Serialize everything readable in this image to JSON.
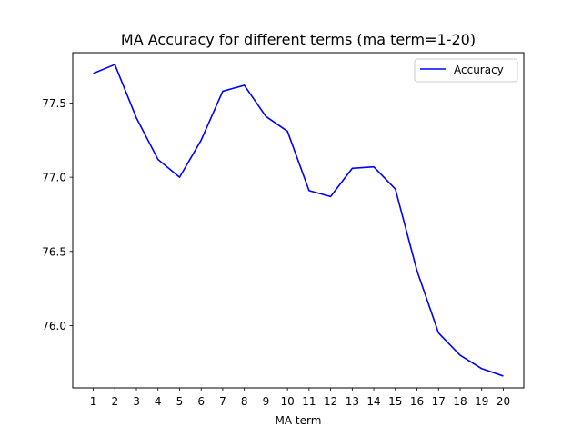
{
  "chart_data": {
    "type": "line",
    "title": "MA Accuracy for different terms (ma term=1-20)",
    "xlabel": "MA term",
    "ylabel": "",
    "x": [
      1,
      2,
      3,
      4,
      5,
      6,
      7,
      8,
      9,
      10,
      11,
      12,
      13,
      14,
      15,
      16,
      17,
      18,
      19,
      20
    ],
    "series": [
      {
        "name": "Accuracy",
        "color": "#0000ff",
        "values": [
          77.7,
          77.76,
          77.4,
          77.12,
          77.0,
          77.25,
          77.58,
          77.62,
          77.41,
          77.31,
          76.91,
          76.87,
          77.06,
          77.07,
          76.92,
          76.37,
          75.95,
          75.8,
          75.71,
          75.66
        ]
      }
    ],
    "xlim": [
      0.05,
      20.95
    ],
    "ylim": [
      75.58,
      77.84
    ],
    "yticks": [
      76.0,
      76.5,
      77.0,
      77.5
    ],
    "ytick_labels": [
      "76.0",
      "76.5",
      "77.0",
      "77.5"
    ],
    "xtick_labels": [
      "1",
      "2",
      "3",
      "4",
      "5",
      "6",
      "7",
      "8",
      "9",
      "10",
      "11",
      "12",
      "13",
      "14",
      "15",
      "16",
      "17",
      "18",
      "19",
      "20"
    ],
    "legend_position": "top-right",
    "grid": false
  }
}
